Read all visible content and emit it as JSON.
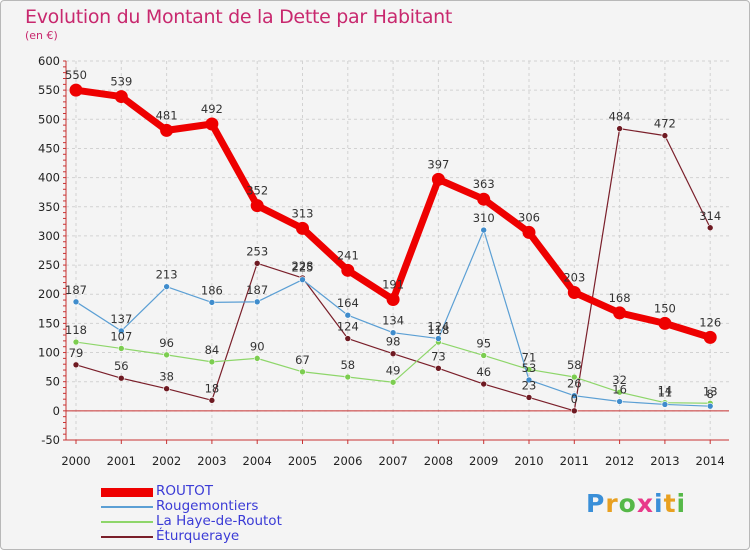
{
  "header": {
    "title": "Evolution du Montant de la Dette par Habitant",
    "subtitle": "(en €)"
  },
  "logo": {
    "text": "Proxiti",
    "colors": [
      "#3a8fd8",
      "#e8a020",
      "#56b848",
      "#e83a8a",
      "#3a8fd8",
      "#e8a020",
      "#56b848"
    ]
  },
  "chart_data": {
    "type": "line",
    "title": "Evolution du Montant de la Dette par Habitant",
    "ylabel": "(en €)",
    "xlabel": "",
    "x": [
      "2000",
      "2001",
      "2002",
      "2003",
      "2004",
      "2005",
      "2006",
      "2007",
      "2008",
      "2009",
      "2010",
      "2011",
      "2012",
      "2013",
      "2014"
    ],
    "ylim": [
      -50,
      600
    ],
    "yticks": [
      -50,
      0,
      50,
      100,
      150,
      200,
      250,
      300,
      350,
      400,
      450,
      500,
      550,
      600
    ],
    "grid": true,
    "legend_position": "bottom-left",
    "series": [
      {
        "name": "Éturqueraye",
        "color": "#7a1f2a",
        "marker": "#6e1a22",
        "width": 1.2,
        "r": 3,
        "values": [
          79,
          56,
          38,
          18,
          253,
          228,
          124,
          98,
          73,
          46,
          23,
          0,
          484,
          472,
          314
        ]
      },
      {
        "name": "La Haye-de-Routot",
        "color": "#8ed66a",
        "marker": "#7ccd50",
        "width": 1.2,
        "r": 3,
        "values": [
          118,
          107,
          96,
          84,
          90,
          67,
          58,
          49,
          118,
          95,
          71,
          58,
          32,
          14,
          13
        ]
      },
      {
        "name": "Rougemontiers",
        "color": "#5b9fd4",
        "marker": "#3f8ccc",
        "width": 1.2,
        "r": 3,
        "values": [
          187,
          137,
          213,
          186,
          187,
          225,
          164,
          134,
          124,
          310,
          53,
          26,
          16,
          11,
          8
        ]
      },
      {
        "name": "ROUTOT",
        "color": "#ee0000",
        "marker": "#ee0000",
        "width": 7,
        "r": 6.5,
        "values": [
          550,
          539,
          481,
          492,
          352,
          313,
          241,
          191,
          397,
          363,
          306,
          203,
          168,
          150,
          126
        ]
      }
    ],
    "legend_order": [
      "ROUTOT",
      "Rougemontiers",
      "La Haye-de-Routot",
      "Éturqueraye"
    ]
  }
}
